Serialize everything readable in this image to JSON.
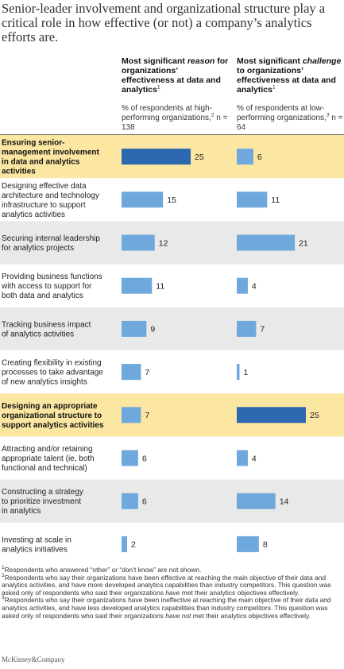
{
  "title": "Senior-leader involvement and organizational structure play a critical role in how effective (or not) a company’s analytics efforts are.",
  "columns": {
    "left": {
      "head_pre": "Most significant ",
      "head_em": "reason",
      "head_post": " for organizations’ effectiveness at data and analytics",
      "head_note": "1",
      "sub_pre": "% of respondents at high-performing organizations,",
      "sub_note": "2",
      "sub_n": "n = 138"
    },
    "right": {
      "head_pre": "Most significant ",
      "head_em": "challenge",
      "head_post": " to organizations’ effectiveness at data and analytics",
      "head_note": "1",
      "sub_pre": "% of respondents at low-performing organizations,",
      "sub_note": "3",
      "sub_n": "n = 64"
    }
  },
  "colors": {
    "bar": "#6fa8dc",
    "bar_highlight": "#2b68b0",
    "row_highlight": "#fbe6a2",
    "row_shade": "#e9e9e9"
  },
  "chart_data": {
    "type": "bar",
    "orientation": "horizontal",
    "categories": [
      "Ensuring senior-management involvement in data and analytics activities",
      "Designing effective data architecture and technology infrastructure to support analytics activities",
      "Securing internal leadership for analytics projects",
      "Providing business functions with access to support for both data and analytics",
      "Tracking business impact of analytics activities",
      "Creating flexibility in existing processes to take advantage of new analytics insights",
      "Designing an appropriate organizational structure to support analytics activities",
      "Attracting and/or retaining appropriate talent (ie, both functional and technical)",
      "Constructing a strategy to prioritize investment in analytics",
      "Investing at scale in analytics initiatives"
    ],
    "category_lines": [
      [
        "Ensuring senior-",
        "management involvement",
        "in data and analytics",
        "activities"
      ],
      [
        "Designing effective data",
        "architecture and technology",
        "infrastructure to support",
        "analytics activities"
      ],
      [
        "Securing internal leadership",
        "for analytics projects"
      ],
      [
        "Providing business functions",
        "with access to support for",
        "both data and analytics"
      ],
      [
        "Tracking business impact",
        "of analytics activities"
      ],
      [
        "Creating flexibility in existing",
        "processes to take advantage",
        "of new analytics insights"
      ],
      [
        "Designing an appropriate",
        "organizational structure to",
        "support analytics activities"
      ],
      [
        "Attracting and/or retaining",
        "appropriate talent (ie, both",
        "functional and technical)"
      ],
      [
        "Constructing a strategy",
        "to prioritize investment",
        "in analytics"
      ],
      [
        "Investing at scale in",
        "analytics initiatives"
      ]
    ],
    "highlighted": [
      true,
      false,
      false,
      false,
      false,
      false,
      true,
      false,
      false,
      false
    ],
    "series": [
      {
        "values": [
          25,
          15,
          12,
          11,
          9,
          7,
          7,
          6,
          6,
          2
        ]
      },
      {
        "values": [
          6,
          11,
          21,
          4,
          7,
          1,
          25,
          4,
          14,
          8
        ]
      }
    ],
    "xlim": [
      0,
      25
    ]
  },
  "footnotes": {
    "n1": "1",
    "t1": "Respondents who answered “other” or “don’t know” are not shown.",
    "n2": "2",
    "t2a": "Respondents who say their organizations have been effective at reaching the main objective of their data and analytics activities, and have more developed analytics capabilities than industry competitors. This question was asked only of respondents who said their organizations ",
    "t2em": "have",
    "t2b": " met their analytics objectives effectively.",
    "n3": "3",
    "t3a": "Respondents who say their organizations have been ineffective at reaching the main objective of their data and analytics activities, and have less developed analytics capabilities than industry competitors. This question was asked only of respondents who said their organizations ",
    "t3em": "have not",
    "t3b": " met their analytics objectives effectively."
  },
  "brand": "McKinsey&Company"
}
